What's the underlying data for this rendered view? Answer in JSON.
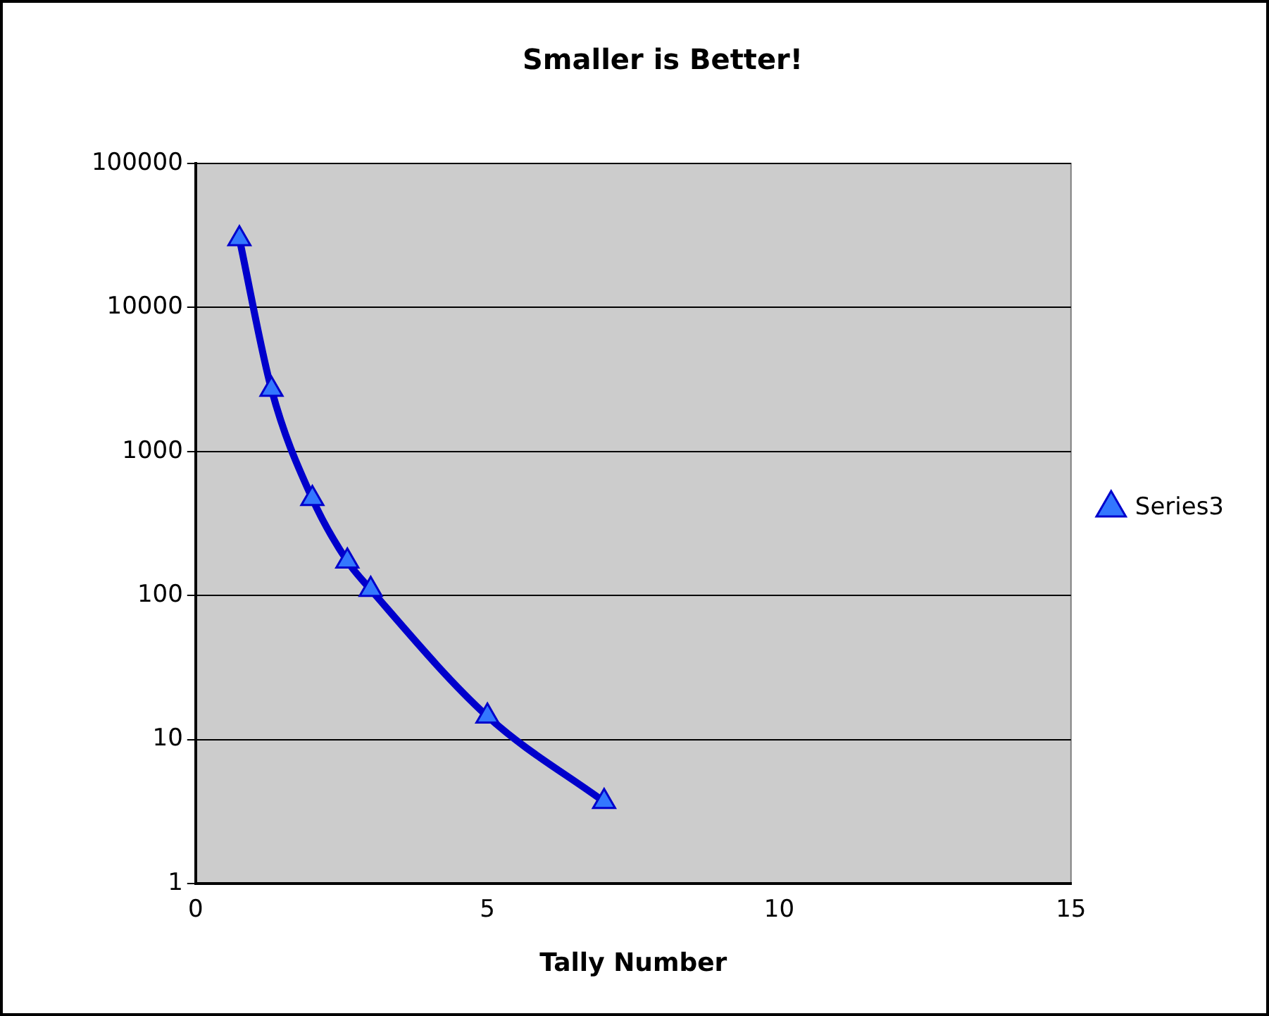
{
  "chart_data": {
    "type": "line",
    "title": "Smaller is Better!",
    "xlabel": "Tally Number",
    "x": [
      0.75,
      1.3,
      2,
      2.6,
      3,
      5,
      7
    ],
    "series": [
      {
        "name": "Series3",
        "color": "#0000cc",
        "values": [
          30000,
          2700,
          470,
          173,
          110,
          14.5,
          3.7
        ]
      }
    ],
    "xlim": [
      0,
      15
    ],
    "xticks": [
      0,
      5,
      10,
      15
    ],
    "ylim": [
      1,
      100000
    ],
    "yticks": [
      1,
      10,
      100,
      1000,
      10000,
      100000
    ],
    "log": "y",
    "grid": "y",
    "legend": "right",
    "marker": "triangle",
    "line_style": "solid"
  }
}
